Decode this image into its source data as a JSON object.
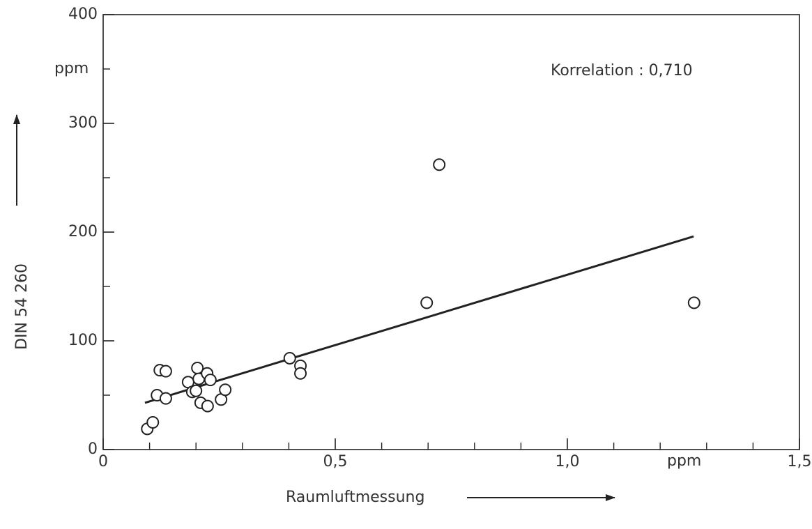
{
  "chart_data": {
    "type": "scatter",
    "x_axis_label": "Raumluftmessung",
    "y_axis_label": "DIN 54 260",
    "x_unit_label": "ppm",
    "y_unit_label": "ppm",
    "annotation": "Korrelation : 0,710",
    "xlim": [
      0,
      1.5
    ],
    "ylim": [
      0,
      400
    ],
    "xticks": [
      0,
      {
        "value": 0.5,
        "label": "0,5"
      },
      {
        "value": 1,
        "label": "1,0"
      },
      {
        "value": 1.5,
        "label": "1,5"
      }
    ],
    "xminor_ticks": [
      0.1,
      0.2,
      0.3,
      0.4,
      0.6,
      0.7,
      0.8,
      0.9,
      1.1,
      1.2,
      1.3,
      1.4
    ],
    "yticks": [
      0,
      100,
      200,
      300,
      400
    ],
    "yminor_ticks": [
      50,
      150,
      250,
      350
    ],
    "series": [
      {
        "color": "#222222",
        "x": [
          0.095,
          0.107,
          0.122,
          0.135,
          0.116,
          0.135,
          0.183,
          0.192,
          0.2,
          0.203,
          0.206,
          0.224,
          0.231,
          0.21,
          0.225,
          0.254,
          0.263,
          0.402,
          0.425,
          0.425,
          0.697,
          0.724,
          1.273
        ],
        "values": [
          19,
          25,
          73,
          72,
          50,
          47,
          62,
          53,
          54,
          75,
          65,
          70,
          64,
          43,
          40,
          46,
          55,
          84,
          77,
          70,
          135,
          262,
          135
        ]
      }
    ],
    "fit_line": {
      "x": [
        0.09,
        1.272
      ],
      "values": [
        43,
        196
      ],
      "color": "#222222"
    }
  }
}
